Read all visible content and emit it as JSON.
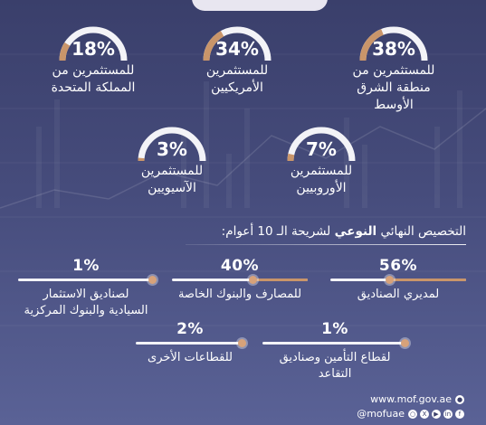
{
  "header": {
    "title": ""
  },
  "gauges": [
    {
      "percent": "38%",
      "value": 38,
      "label_lines": [
        "للمستثمرين من",
        "منطقة الشرق",
        "الأوسط"
      ]
    },
    {
      "percent": "34%",
      "value": 34,
      "label_lines": [
        "للمستثمرين",
        "الأمريكيين"
      ]
    },
    {
      "percent": "18%",
      "value": 18,
      "label_lines": [
        "للمستثمرين من",
        "المملكة المتحدة"
      ]
    },
    {
      "percent": "7%",
      "value": 7,
      "label_lines": [
        "للمستثمرين",
        "الأوروبيين"
      ]
    },
    {
      "percent": "3%",
      "value": 3,
      "label_lines": [
        "للمستثمرين",
        "الآسيويين"
      ]
    }
  ],
  "section": {
    "title_before": "التخصيص النهائي ",
    "title_bold": "النوعي",
    "title_after": " لشريحة الـ 10 أعوام:"
  },
  "bars": [
    {
      "percent": "56%",
      "value": 56,
      "label_lines": [
        "لمديري الصناديق"
      ]
    },
    {
      "percent": "40%",
      "value": 40,
      "label_lines": [
        "للمصارف والبنوك الخاصة"
      ]
    },
    {
      "percent": "1%",
      "value": 1,
      "label_lines": [
        "لصناديق الاستثمار",
        "السيادية والبنوك المركزية"
      ]
    },
    {
      "percent": "1%",
      "value": 1,
      "label_lines": [
        "لقطاع التأمين وصناديق التقاعد"
      ]
    },
    {
      "percent": "2%",
      "value": 2,
      "label_lines": [
        "للقطاعات الأخرى"
      ]
    }
  ],
  "footer": {
    "website": "www.mof.gov.ae",
    "handle": "@mofuae"
  },
  "colors": {
    "accent": "#c9956a",
    "track": "#f3f3f7",
    "background": "#464c7c"
  }
}
